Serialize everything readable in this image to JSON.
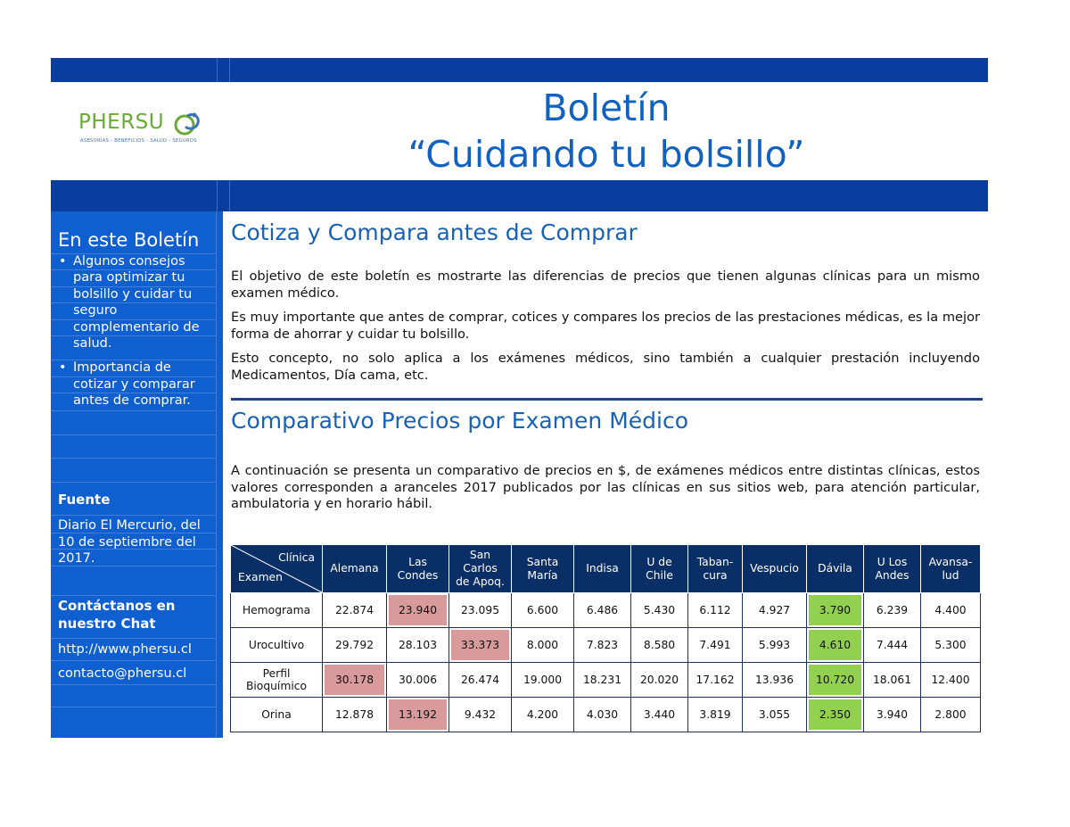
{
  "header": {
    "logo": {
      "name": "PHERSU",
      "tagline": "ASESORÍAS - BENEFICIOS - SALUD - SEGUROS"
    },
    "title_line1": "Boletín",
    "title_line2": "“Cuidando tu bolsillo”"
  },
  "sidebar": {
    "heading": "En este Boletín",
    "items": [
      "Algunos consejos para optimizar tu bolsillo y cuidar tu seguro complementario de salud.",
      "Importancia de cotizar y comparar antes de comprar."
    ],
    "fuente_label": "Fuente",
    "fuente_text": "Diario El Mercurio, del 10 de septiembre del 2017.",
    "contact_label": "Contáctanos en nuestro Chat",
    "contact_url": "http://www.phersu.cl",
    "contact_email": "contacto@phersu.cl"
  },
  "main": {
    "section1_title": "Cotiza y Compara antes de Comprar",
    "p1": "El objetivo de este boletín es mostrarte las diferencias de precios que tienen algunas clínicas para un mismo examen médico.",
    "p2": "Es muy importante que antes de comprar, cotices y compares los precios de las prestaciones médicas, es la mejor forma de ahorrar y cuidar tu bolsillo.",
    "p3": "Esto concepto, no solo aplica a los exámenes médicos, sino también a cualquier prestación incluyendo Medicamentos, Día cama, etc.",
    "section2_title": "Comparativo Precios por Examen Médico",
    "p4": "A continuación se presenta un comparativo de precios en $, de exámenes médicos entre distintas clínicas, estos valores corresponden a aranceles 2017 publicados por las clínicas en sus sitios web, para atención particular, ambulatoria y en horario hábil."
  },
  "table": {
    "corner_top": "Clínica",
    "corner_bottom": "Examen",
    "columns": [
      "Alemana",
      "Las\nCondes",
      "San\nCarlos\nde Apoq.",
      "Santa\nMaría",
      "Indisa",
      "U de\nChile",
      "Taban-\ncura",
      "Vespucio",
      "Dávila",
      "U Los\nAndes",
      "Avansa-\nlud"
    ],
    "rows": [
      {
        "label": "Hemograma",
        "values": [
          "22.874",
          "23.940",
          "23.095",
          "6.600",
          "6.486",
          "5.430",
          "6.112",
          "4.927",
          "3.790",
          "6.239",
          "4.400"
        ],
        "max_index": 1,
        "min_index": 8
      },
      {
        "label": "Urocultivo",
        "values": [
          "29.792",
          "28.103",
          "33.373",
          "8.000",
          "7.823",
          "8.580",
          "7.491",
          "5.993",
          "4.610",
          "7.444",
          "5.300"
        ],
        "max_index": 2,
        "min_index": 8
      },
      {
        "label": "Perfil\nBioquímico",
        "values": [
          "30.178",
          "30.006",
          "26.474",
          "19.000",
          "18.231",
          "20.020",
          "17.162",
          "13.936",
          "10.720",
          "18.061",
          "12.400"
        ],
        "max_index": 0,
        "min_index": 8
      },
      {
        "label": "Orina",
        "values": [
          "12.878",
          "13.192",
          "9.432",
          "4.200",
          "4.030",
          "3.440",
          "3.819",
          "3.055",
          "2.350",
          "3.940",
          "2.800"
        ],
        "max_index": 1,
        "min_index": 8
      }
    ],
    "highlight_colors": {
      "max": "#d89a9a",
      "min": "#92d050"
    }
  }
}
